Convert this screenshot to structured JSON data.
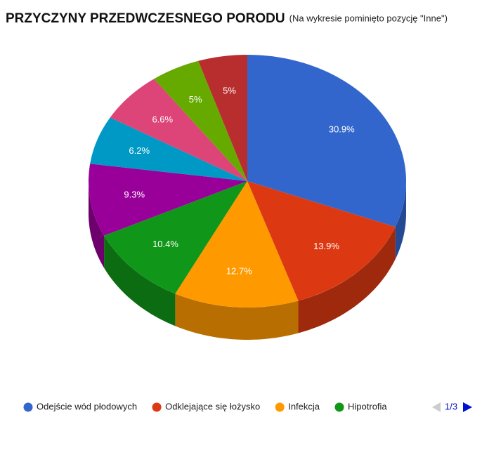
{
  "chart_data": {
    "type": "pie3d",
    "title": "PRZYCZYNY PRZEDWCZESNEGO PORODU",
    "subtitle": "(Na wykresie pominięto pozycję \"Inne\")",
    "categories": [
      "Odejście wód płodowych",
      "Odklejające się łożysko",
      "Infekcja",
      "Hipotrofia",
      null,
      null,
      null,
      null,
      null
    ],
    "values": [
      30.9,
      13.9,
      12.7,
      10.4,
      9.3,
      6.2,
      6.6,
      5,
      5
    ],
    "value_labels": [
      "30.9%",
      "13.9%",
      "12.7%",
      "10.4%",
      "9.3%",
      "6.2%",
      "6.6%",
      "5%",
      "5%"
    ],
    "colors": [
      "#3366cc",
      "#dc3912",
      "#ff9900",
      "#109618",
      "#990099",
      "#0099c6",
      "#dd4477",
      "#66aa00",
      "#b82e2e"
    ],
    "legend": "bottom",
    "legend_page": "1/3"
  }
}
